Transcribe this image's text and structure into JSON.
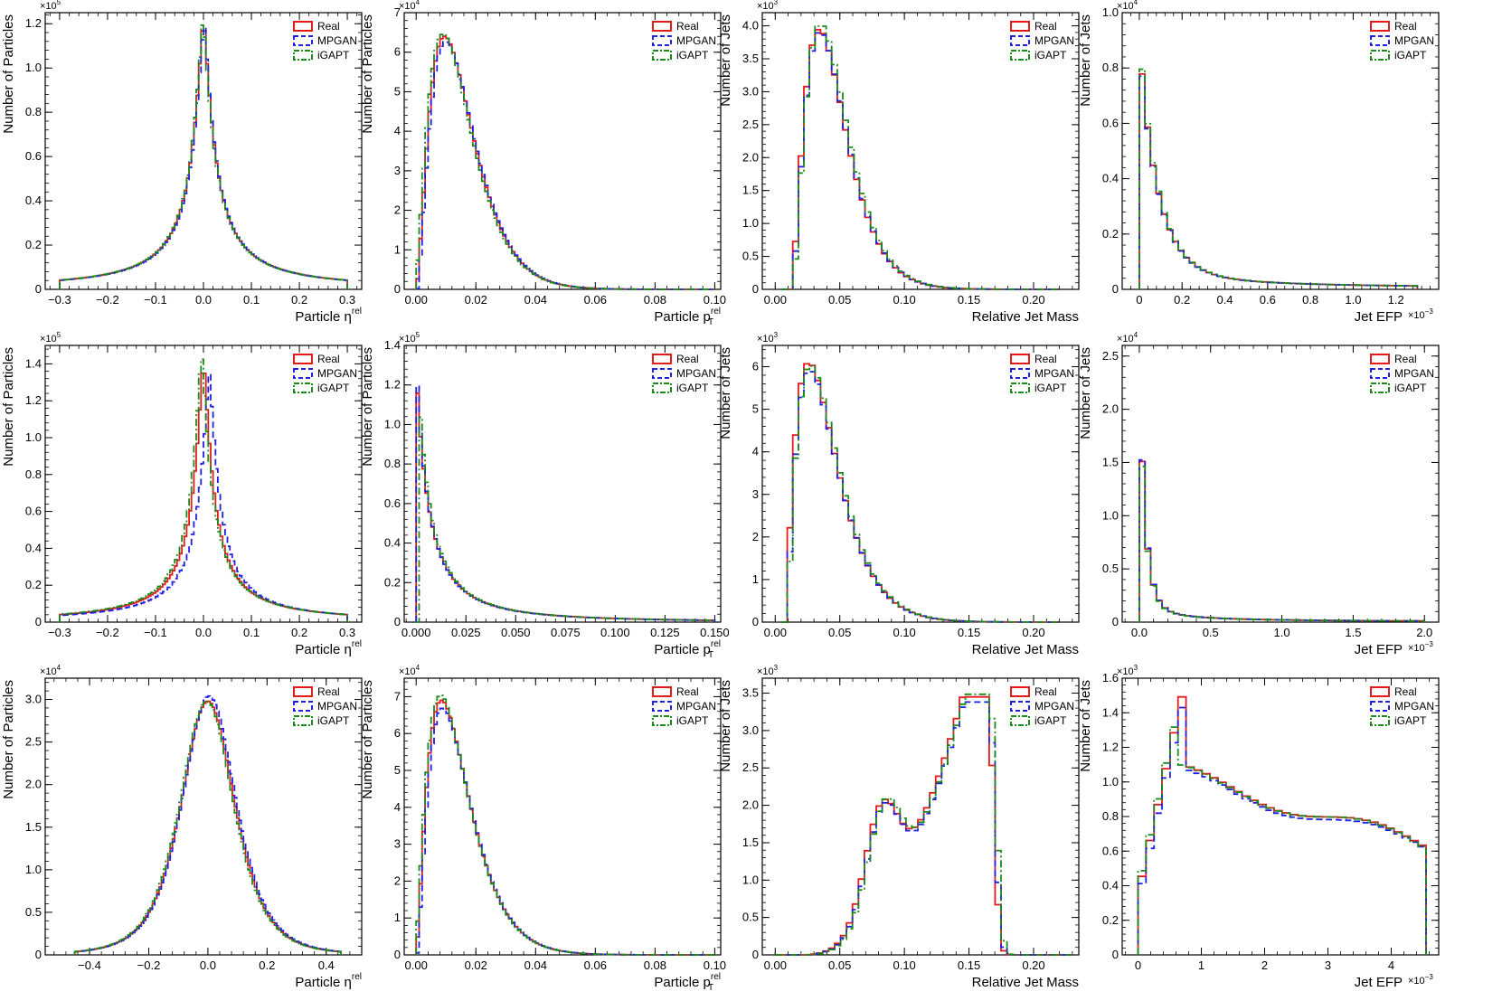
{
  "legend_labels": [
    "Real",
    "MPGAN",
    "iGAPT"
  ],
  "series_colors": {
    "Real": "#e41a1c",
    "MPGAN": "#1f1fe6",
    "iGAPT": "#1a8a1a"
  },
  "chart_data": [
    {
      "type": "step-histogram",
      "row": 0,
      "col": 0,
      "xlabel": "Particle η",
      "xlabel_sup": "rel",
      "ylabel": "Number of Particles",
      "y_exponent": "5",
      "xlim": [
        -0.33,
        0.33
      ],
      "ylim": [
        0,
        1.25
      ],
      "xticks": [
        -0.3,
        -0.2,
        -0.1,
        0.0,
        0.1,
        0.2,
        0.3
      ],
      "xtick_labels": [
        "−0.3",
        "−0.2",
        "−0.1",
        "0.0",
        "0.1",
        "0.2",
        "0.3"
      ],
      "yticks": [
        0,
        0.2,
        0.4,
        0.6,
        0.8,
        1.0,
        1.2
      ],
      "ytick_labels": [
        "0",
        "0.2",
        "0.4",
        "0.6",
        "0.8",
        "1.0",
        "1.2"
      ],
      "legend": "top-right",
      "shape": {
        "kind": "cusp",
        "center": 0.0,
        "peak": 1.22,
        "width": 0.025,
        "x_start": -0.3,
        "x_end": 0.3,
        "bins": 120
      },
      "series": [
        {
          "name": "Real",
          "shift": 0,
          "scale": 1.0
        },
        {
          "name": "MPGAN",
          "shift": 0.001,
          "scale": 0.99
        },
        {
          "name": "iGAPT",
          "shift": -0.001,
          "scale": 1.0
        }
      ]
    },
    {
      "type": "step-histogram",
      "row": 0,
      "col": 1,
      "xlabel": "Particle p",
      "xlabel_sub": "T",
      "xlabel_sup": "rel",
      "ylabel": "Number of Particles",
      "y_exponent": "4",
      "xlim": [
        -0.004,
        0.102
      ],
      "ylim": [
        0,
        7
      ],
      "xticks": [
        0.0,
        0.02,
        0.04,
        0.06,
        0.08,
        0.1
      ],
      "xtick_labels": [
        "0.00",
        "0.02",
        "0.04",
        "0.06",
        "0.08",
        "0.10"
      ],
      "yticks": [
        0,
        1,
        2,
        3,
        4,
        5,
        6,
        7
      ],
      "ytick_labels": [
        "0",
        "1",
        "2",
        "3",
        "4",
        "5",
        "6",
        "7"
      ],
      "legend": "top-right",
      "shape": {
        "kind": "gamma",
        "mode": 0.0095,
        "peak": 6.4,
        "k": 2.6,
        "x_start": 0.0,
        "x_end": 0.1,
        "bins": 100,
        "tail_floor": 0.15
      },
      "series": [
        {
          "name": "Real",
          "shift": 0,
          "scale": 1.0
        },
        {
          "name": "MPGAN",
          "shift": 0.0004,
          "scale": 0.98
        },
        {
          "name": "iGAPT",
          "shift": -0.0005,
          "scale": 1.01
        }
      ]
    },
    {
      "type": "step-histogram",
      "row": 0,
      "col": 2,
      "xlabel": "Relative Jet Mass",
      "ylabel": "Number of Jets",
      "y_exponent": "3",
      "xlim": [
        -0.01,
        0.235
      ],
      "ylim": [
        0,
        4.2
      ],
      "xticks": [
        0.0,
        0.05,
        0.1,
        0.15,
        0.2
      ],
      "xtick_labels": [
        "0.00",
        "0.05",
        "0.10",
        "0.15",
        "0.20"
      ],
      "yticks": [
        0,
        0.5,
        1.0,
        1.5,
        2.0,
        2.5,
        3.0,
        3.5,
        4.0
      ],
      "ytick_labels": [
        "0",
        "0.5",
        "1.0",
        "1.5",
        "2.0",
        "2.5",
        "3.0",
        "3.5",
        "4.0"
      ],
      "legend": "top-right",
      "shape": {
        "kind": "gamma",
        "mode": 0.034,
        "peak": 3.95,
        "k": 2.8,
        "x_start": 0.005,
        "x_end": 0.22,
        "bins": 50,
        "onset": 0.012
      },
      "series": [
        {
          "name": "Real",
          "shift": 0,
          "scale": 1.0
        },
        {
          "name": "MPGAN",
          "shift": 0.0005,
          "scale": 0.99
        },
        {
          "name": "iGAPT",
          "shift": 0.001,
          "scale": 1.02
        }
      ]
    },
    {
      "type": "step-histogram",
      "row": 0,
      "col": 3,
      "xlabel": "Jet EFP",
      "ylabel": "Number of Jets",
      "y_exponent": "4",
      "x_exponent": "−3",
      "xlim": [
        -0.08,
        1.4
      ],
      "ylim": [
        0,
        1.0
      ],
      "xticks": [
        0.0,
        0.2,
        0.4,
        0.6,
        0.8,
        1.0,
        1.2
      ],
      "xtick_labels": [
        "0",
        "0.2",
        "0.4",
        "0.6",
        "0.8",
        "1.0",
        "1.2"
      ],
      "yticks": [
        0,
        0.2,
        0.4,
        0.6,
        0.8,
        1.0
      ],
      "ytick_labels": [
        "0",
        "0.2",
        "0.4",
        "0.6",
        "0.8",
        "1.0"
      ],
      "legend": "top-right",
      "shape": {
        "kind": "decay",
        "peak": 0.93,
        "scale_x": 0.09,
        "x_start": 0.0,
        "x_end": 1.3,
        "bins": 50
      },
      "series": [
        {
          "name": "Real",
          "shift": 0,
          "scale": 1.0
        },
        {
          "name": "MPGAN",
          "shift": 0,
          "scale": 0.99
        },
        {
          "name": "iGAPT",
          "shift": 0.002,
          "scale": 1.0
        }
      ]
    },
    {
      "type": "step-histogram",
      "row": 1,
      "col": 0,
      "xlabel": "Particle η",
      "xlabel_sup": "rel",
      "ylabel": "Number of Particles",
      "y_exponent": "5",
      "xlim": [
        -0.33,
        0.33
      ],
      "ylim": [
        0,
        1.5
      ],
      "xticks": [
        -0.3,
        -0.2,
        -0.1,
        0.0,
        0.1,
        0.2,
        0.3
      ],
      "xtick_labels": [
        "−0.3",
        "−0.2",
        "−0.1",
        "0.0",
        "0.1",
        "0.2",
        "0.3"
      ],
      "yticks": [
        0,
        0.2,
        0.4,
        0.6,
        0.8,
        1.0,
        1.2,
        1.4
      ],
      "ytick_labels": [
        "0",
        "0.2",
        "0.4",
        "0.6",
        "0.8",
        "1.0",
        "1.2",
        "1.4"
      ],
      "legend": "top-right",
      "shape": {
        "kind": "cusp",
        "center": 0.0,
        "peak": 1.42,
        "width": 0.022,
        "x_start": -0.3,
        "x_end": 0.3,
        "bins": 120
      },
      "series": [
        {
          "name": "Real",
          "shift": 0,
          "scale": 1.0
        },
        {
          "name": "MPGAN",
          "shift": 0.012,
          "scale": 0.95
        },
        {
          "name": "iGAPT",
          "shift": -0.004,
          "scale": 1.03
        }
      ]
    },
    {
      "type": "step-histogram",
      "row": 1,
      "col": 1,
      "xlabel": "Particle p",
      "xlabel_sub": "T",
      "xlabel_sup": "rel",
      "ylabel": "Number of Particles",
      "y_exponent": "5",
      "xlim": [
        -0.006,
        0.153
      ],
      "ylim": [
        0,
        1.4
      ],
      "xticks": [
        0.0,
        0.025,
        0.05,
        0.075,
        0.1,
        0.125,
        0.15
      ],
      "xtick_labels": [
        "0.000",
        "0.025",
        "0.050",
        "0.075",
        "0.100",
        "0.125",
        "0.150"
      ],
      "yticks": [
        0,
        0.2,
        0.4,
        0.6,
        0.8,
        1.0,
        1.2,
        1.4
      ],
      "ytick_labels": [
        "0",
        "0.2",
        "0.4",
        "0.6",
        "0.8",
        "1.0",
        "1.2",
        "1.4"
      ],
      "legend": "top-right",
      "shape": {
        "kind": "powerdecay",
        "peak": 1.3,
        "scale_x": 0.012,
        "x_start": 0.0,
        "x_end": 0.15,
        "bins": 100
      },
      "series": [
        {
          "name": "Real",
          "shift": 0,
          "scale": 1.0
        },
        {
          "name": "MPGAN",
          "shift": 0.0004,
          "scale": 0.97
        },
        {
          "name": "iGAPT",
          "shift": 0.0008,
          "scale": 0.99
        }
      ]
    },
    {
      "type": "step-histogram",
      "row": 1,
      "col": 2,
      "xlabel": "Relative Jet Mass",
      "ylabel": "Number of Jets",
      "y_exponent": "3",
      "xlim": [
        -0.01,
        0.235
      ],
      "ylim": [
        0,
        6.5
      ],
      "xticks": [
        0.0,
        0.05,
        0.1,
        0.15,
        0.2
      ],
      "xtick_labels": [
        "0.00",
        "0.05",
        "0.10",
        "0.15",
        "0.20"
      ],
      "yticks": [
        0,
        1,
        2,
        3,
        4,
        5,
        6
      ],
      "ytick_labels": [
        "0",
        "1",
        "2",
        "3",
        "4",
        "5",
        "6"
      ],
      "legend": "top-right",
      "shape": {
        "kind": "gamma",
        "mode": 0.026,
        "peak": 6.1,
        "k": 2.2,
        "x_start": 0.005,
        "x_end": 0.22,
        "bins": 50,
        "onset": 0.008
      },
      "series": [
        {
          "name": "Real",
          "shift": 0,
          "scale": 1.0
        },
        {
          "name": "MPGAN",
          "shift": 0.0008,
          "scale": 0.97
        },
        {
          "name": "iGAPT",
          "shift": 0.0012,
          "scale": 0.99
        }
      ]
    },
    {
      "type": "step-histogram",
      "row": 1,
      "col": 3,
      "xlabel": "Jet EFP",
      "ylabel": "Number of Jets",
      "y_exponent": "4",
      "x_exponent": "−3",
      "xlim": [
        -0.12,
        2.1
      ],
      "ylim": [
        0,
        2.6
      ],
      "xticks": [
        0.0,
        0.5,
        1.0,
        1.5,
        2.0
      ],
      "xtick_labels": [
        "0.0",
        "0.5",
        "1.0",
        "1.5",
        "2.0"
      ],
      "yticks": [
        0,
        0.5,
        1.0,
        1.5,
        2.0,
        2.5
      ],
      "ytick_labels": [
        "0",
        "0.5",
        "1.0",
        "1.5",
        "2.0",
        "2.5"
      ],
      "legend": "top-right",
      "shape": {
        "kind": "decay",
        "peak": 2.42,
        "scale_x": 0.045,
        "x_start": 0.0,
        "x_end": 2.0,
        "bins": 50
      },
      "series": [
        {
          "name": "Real",
          "shift": 0,
          "scale": 1.0
        },
        {
          "name": "MPGAN",
          "shift": 0,
          "scale": 1.01
        },
        {
          "name": "iGAPT",
          "shift": 0,
          "scale": 0.97
        }
      ]
    },
    {
      "type": "step-histogram",
      "row": 2,
      "col": 0,
      "xlabel": "Particle η",
      "xlabel_sup": "rel",
      "ylabel": "Number of Particles",
      "y_exponent": "4",
      "xlim": [
        -0.55,
        0.52
      ],
      "ylim": [
        0,
        3.25
      ],
      "xticks": [
        -0.4,
        -0.2,
        0.0,
        0.2,
        0.4
      ],
      "xtick_labels": [
        "−0.4",
        "−0.2",
        "0.0",
        "0.2",
        "0.4"
      ],
      "yticks": [
        0,
        0.5,
        1.0,
        1.5,
        2.0,
        2.5,
        3.0
      ],
      "ytick_labels": [
        "0",
        "0.5",
        "1.0",
        "1.5",
        "2.0",
        "2.5",
        "3.0"
      ],
      "legend": "top-right",
      "shape": {
        "kind": "bell",
        "center": 0.0,
        "peak": 2.98,
        "width": 0.12,
        "x_start": -0.45,
        "x_end": 0.45,
        "bins": 120
      },
      "series": [
        {
          "name": "Real",
          "shift": 0,
          "scale": 1.0
        },
        {
          "name": "MPGAN",
          "shift": 0.004,
          "scale": 1.02
        },
        {
          "name": "iGAPT",
          "shift": -0.004,
          "scale": 1.0
        }
      ]
    },
    {
      "type": "step-histogram",
      "row": 2,
      "col": 1,
      "xlabel": "Particle p",
      "xlabel_sub": "T",
      "xlabel_sup": "rel",
      "ylabel": "Number of Particles",
      "y_exponent": "4",
      "xlim": [
        -0.004,
        0.102
      ],
      "ylim": [
        0,
        7.5
      ],
      "xticks": [
        0.0,
        0.02,
        0.04,
        0.06,
        0.08,
        0.1
      ],
      "xtick_labels": [
        "0.00",
        "0.02",
        "0.04",
        "0.06",
        "0.08",
        "0.10"
      ],
      "yticks": [
        0,
        1,
        2,
        3,
        4,
        5,
        6,
        7
      ],
      "ytick_labels": [
        "0",
        "1",
        "2",
        "3",
        "4",
        "5",
        "6",
        "7"
      ],
      "legend": "top-right",
      "shape": {
        "kind": "gamma",
        "mode": 0.0085,
        "peak": 6.9,
        "k": 2.4,
        "x_start": 0.0,
        "x_end": 0.1,
        "bins": 100,
        "tail_floor": 0.12
      },
      "series": [
        {
          "name": "Real",
          "shift": 0,
          "scale": 1.0
        },
        {
          "name": "MPGAN",
          "shift": 0.0004,
          "scale": 0.97
        },
        {
          "name": "iGAPT",
          "shift": -0.0003,
          "scale": 1.02
        }
      ]
    },
    {
      "type": "step-histogram",
      "row": 2,
      "col": 2,
      "xlabel": "Relative Jet Mass",
      "ylabel": "Number of Jets",
      "y_exponent": "3",
      "xlim": [
        -0.01,
        0.235
      ],
      "ylim": [
        0,
        3.7
      ],
      "xticks": [
        0.0,
        0.05,
        0.1,
        0.15,
        0.2
      ],
      "xtick_labels": [
        "0.00",
        "0.05",
        "0.10",
        "0.15",
        "0.20"
      ],
      "yticks": [
        0,
        0.5,
        1.0,
        1.5,
        2.0,
        2.5,
        3.0,
        3.5
      ],
      "ytick_labels": [
        "0",
        "0.5",
        "1.0",
        "1.5",
        "2.0",
        "2.5",
        "3.0",
        "3.5"
      ],
      "legend": "top-right",
      "shape": {
        "kind": "bimodal",
        "x_start": 0.0,
        "x_end": 0.23,
        "bins": 50
      },
      "series": [
        {
          "name": "Real",
          "shift": 0,
          "scale": 1.0
        },
        {
          "name": "MPGAN",
          "shift": 0.001,
          "scale": 0.98
        },
        {
          "name": "iGAPT",
          "shift": 0.002,
          "scale": 1.01
        }
      ]
    },
    {
      "type": "step-histogram",
      "row": 2,
      "col": 3,
      "xlabel": "Jet EFP",
      "ylabel": "Number of Jets",
      "y_exponent": "3",
      "x_exponent": "−3",
      "xlim": [
        -0.25,
        4.75
      ],
      "ylim": [
        0,
        1.6
      ],
      "xticks": [
        0,
        1,
        2,
        3,
        4
      ],
      "xtick_labels": [
        "0",
        "1",
        "2",
        "3",
        "4"
      ],
      "yticks": [
        0,
        0.2,
        0.4,
        0.6,
        0.8,
        1.0,
        1.2,
        1.4,
        1.6
      ],
      "ytick_labels": [
        "0",
        "0.2",
        "0.4",
        "0.6",
        "0.8",
        "1.0",
        "1.2",
        "1.4",
        "1.6"
      ],
      "legend": "top-right",
      "shape": {
        "kind": "efpflat",
        "x_start": 0.0,
        "x_end": 4.55,
        "bins": 36
      },
      "series": [
        {
          "name": "Real",
          "shift": 0,
          "scale": 1.0
        },
        {
          "name": "MPGAN",
          "shift": 0.02,
          "scale": 0.98
        },
        {
          "name": "iGAPT",
          "shift": -0.02,
          "scale": 1.0
        }
      ]
    }
  ]
}
